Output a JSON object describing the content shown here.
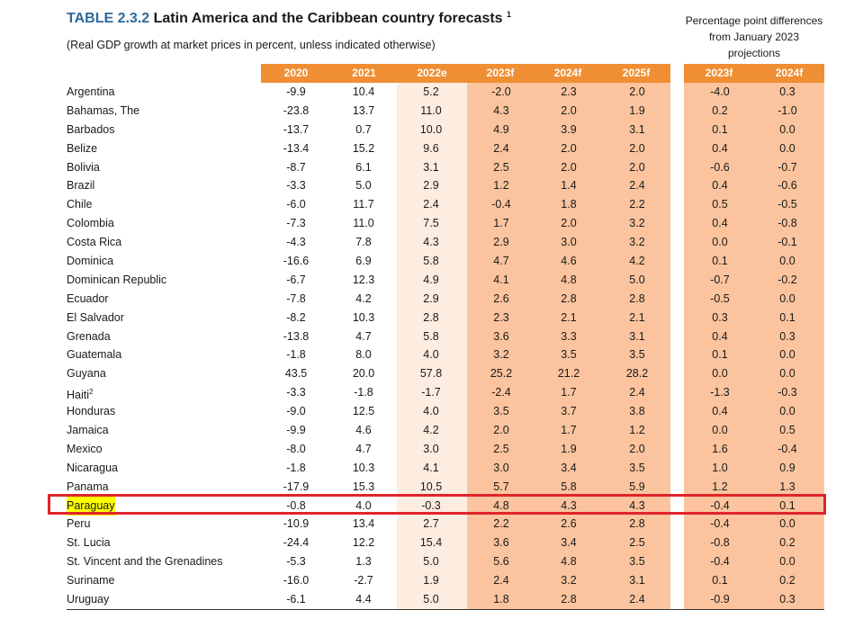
{
  "title": {
    "tag": "TABLE 2.3.2",
    "text": "Latin America and the Caribbean country forecasts",
    "note_mark": "1"
  },
  "subtitle": "(Real GDP growth at market prices in percent, unless indicated otherwise)",
  "diff_note": "Percentage point differences from January 2023 projections",
  "columns": [
    "2020",
    "2021",
    "2022e",
    "2023f",
    "2024f",
    "2025f"
  ],
  "diff_columns": [
    "2023f",
    "2024f"
  ],
  "colors": {
    "header": "#ef8e33",
    "estimate_band": "#fdece0",
    "forecast_band": "#fbc49e",
    "highlight_box": "#e0242b",
    "highlight_text": "#ffff00",
    "title_tag": "#2f6a9b"
  },
  "rows": [
    {
      "country": "Argentina",
      "values": [
        "-9.9",
        "10.4",
        "5.2",
        "-2.0",
        "2.3",
        "2.0"
      ],
      "diff": [
        "-4.0",
        "0.3"
      ]
    },
    {
      "country": "Bahamas, The",
      "values": [
        "-23.8",
        "13.7",
        "11.0",
        "4.3",
        "2.0",
        "1.9"
      ],
      "diff": [
        "0.2",
        "-1.0"
      ]
    },
    {
      "country": "Barbados",
      "values": [
        "-13.7",
        "0.7",
        "10.0",
        "4.9",
        "3.9",
        "3.1"
      ],
      "diff": [
        "0.1",
        "0.0"
      ]
    },
    {
      "country": "Belize",
      "values": [
        "-13.4",
        "15.2",
        "9.6",
        "2.4",
        "2.0",
        "2.0"
      ],
      "diff": [
        "0.4",
        "0.0"
      ]
    },
    {
      "country": "Bolivia",
      "values": [
        "-8.7",
        "6.1",
        "3.1",
        "2.5",
        "2.0",
        "2.0"
      ],
      "diff": [
        "-0.6",
        "-0.7"
      ]
    },
    {
      "country": "Brazil",
      "values": [
        "-3.3",
        "5.0",
        "2.9",
        "1.2",
        "1.4",
        "2.4"
      ],
      "diff": [
        "0.4",
        "-0.6"
      ]
    },
    {
      "country": "Chile",
      "values": [
        "-6.0",
        "11.7",
        "2.4",
        "-0.4",
        "1.8",
        "2.2"
      ],
      "diff": [
        "0.5",
        "-0.5"
      ]
    },
    {
      "country": "Colombia",
      "values": [
        "-7.3",
        "11.0",
        "7.5",
        "1.7",
        "2.0",
        "3.2"
      ],
      "diff": [
        "0.4",
        "-0.8"
      ]
    },
    {
      "country": "Costa Rica",
      "values": [
        "-4.3",
        "7.8",
        "4.3",
        "2.9",
        "3.0",
        "3.2"
      ],
      "diff": [
        "0.0",
        "-0.1"
      ]
    },
    {
      "country": "Dominica",
      "values": [
        "-16.6",
        "6.9",
        "5.8",
        "4.7",
        "4.6",
        "4.2"
      ],
      "diff": [
        "0.1",
        "0.0"
      ]
    },
    {
      "country": "Dominican Republic",
      "values": [
        "-6.7",
        "12.3",
        "4.9",
        "4.1",
        "4.8",
        "5.0"
      ],
      "diff": [
        "-0.7",
        "-0.2"
      ]
    },
    {
      "country": "Ecuador",
      "values": [
        "-7.8",
        "4.2",
        "2.9",
        "2.6",
        "2.8",
        "2.8"
      ],
      "diff": [
        "-0.5",
        "0.0"
      ]
    },
    {
      "country": "El Salvador",
      "values": [
        "-8.2",
        "10.3",
        "2.8",
        "2.3",
        "2.1",
        "2.1"
      ],
      "diff": [
        "0.3",
        "0.1"
      ]
    },
    {
      "country": "Grenada",
      "values": [
        "-13.8",
        "4.7",
        "5.8",
        "3.6",
        "3.3",
        "3.1"
      ],
      "diff": [
        "0.4",
        "0.3"
      ]
    },
    {
      "country": "Guatemala",
      "values": [
        "-1.8",
        "8.0",
        "4.0",
        "3.2",
        "3.5",
        "3.5"
      ],
      "diff": [
        "0.1",
        "0.0"
      ]
    },
    {
      "country": "Guyana",
      "values": [
        "43.5",
        "20.0",
        "57.8",
        "25.2",
        "21.2",
        "28.2"
      ],
      "diff": [
        "0.0",
        "0.0"
      ]
    },
    {
      "country": "Haiti",
      "note": "2",
      "values": [
        "-3.3",
        "-1.8",
        "-1.7",
        "-2.4",
        "1.7",
        "2.4"
      ],
      "diff": [
        "-1.3",
        "-0.3"
      ]
    },
    {
      "country": "Honduras",
      "values": [
        "-9.0",
        "12.5",
        "4.0",
        "3.5",
        "3.7",
        "3.8"
      ],
      "diff": [
        "0.4",
        "0.0"
      ]
    },
    {
      "country": "Jamaica",
      "values": [
        "-9.9",
        "4.6",
        "4.2",
        "2.0",
        "1.7",
        "1.2"
      ],
      "diff": [
        "0.0",
        "0.5"
      ]
    },
    {
      "country": "Mexico",
      "values": [
        "-8.0",
        "4.7",
        "3.0",
        "2.5",
        "1.9",
        "2.0"
      ],
      "diff": [
        "1.6",
        "-0.4"
      ]
    },
    {
      "country": "Nicaragua",
      "values": [
        "-1.8",
        "10.3",
        "4.1",
        "3.0",
        "3.4",
        "3.5"
      ],
      "diff": [
        "1.0",
        "0.9"
      ]
    },
    {
      "country": "Panama",
      "values": [
        "-17.9",
        "15.3",
        "10.5",
        "5.7",
        "5.8",
        "5.9"
      ],
      "diff": [
        "1.2",
        "1.3"
      ]
    },
    {
      "country": "Paraguay",
      "highlight": true,
      "values": [
        "-0.8",
        "4.0",
        "-0.3",
        "4.8",
        "4.3",
        "4.3"
      ],
      "diff": [
        "-0.4",
        "0.1"
      ]
    },
    {
      "country": "Peru",
      "values": [
        "-10.9",
        "13.4",
        "2.7",
        "2.2",
        "2.6",
        "2.8"
      ],
      "diff": [
        "-0.4",
        "0.0"
      ]
    },
    {
      "country": "St. Lucia",
      "values": [
        "-24.4",
        "12.2",
        "15.4",
        "3.6",
        "3.4",
        "2.5"
      ],
      "diff": [
        "-0.8",
        "0.2"
      ]
    },
    {
      "country": "St. Vincent and the Grenadines",
      "values": [
        "-5.3",
        "1.3",
        "5.0",
        "5.6",
        "4.8",
        "3.5"
      ],
      "diff": [
        "-0.4",
        "0.0"
      ]
    },
    {
      "country": "Suriname",
      "values": [
        "-16.0",
        "-2.7",
        "1.9",
        "2.4",
        "3.2",
        "3.1"
      ],
      "diff": [
        "0.1",
        "0.2"
      ]
    },
    {
      "country": "Uruguay",
      "values": [
        "-6.1",
        "4.4",
        "5.0",
        "1.8",
        "2.8",
        "2.4"
      ],
      "diff": [
        "-0.9",
        "0.3"
      ]
    }
  ]
}
